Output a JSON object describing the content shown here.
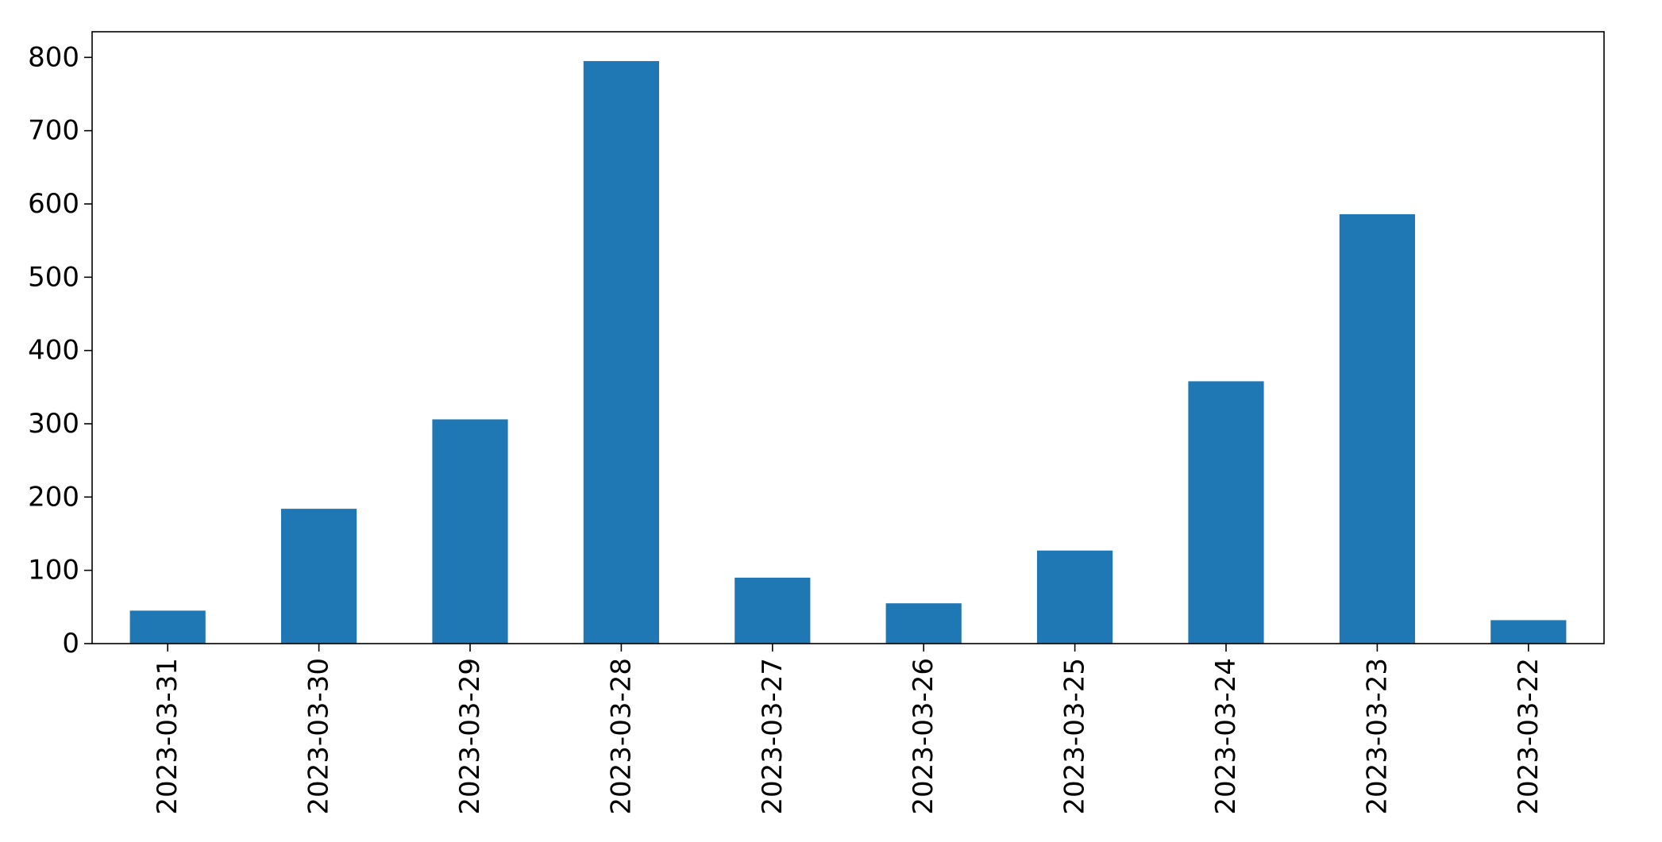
{
  "chart_data": {
    "type": "bar",
    "title": "",
    "xlabel": "",
    "ylabel": "",
    "categories": [
      "2023-03-31",
      "2023-03-30",
      "2023-03-29",
      "2023-03-28",
      "2023-03-27",
      "2023-03-26",
      "2023-03-25",
      "2023-03-24",
      "2023-03-23",
      "2023-03-22"
    ],
    "values": [
      45,
      184,
      306,
      795,
      90,
      55,
      127,
      358,
      586,
      32
    ],
    "ylim": [
      0,
      835
    ],
    "yticks": [
      0,
      100,
      200,
      300,
      400,
      500,
      600,
      700,
      800
    ],
    "ytick_labels": [
      "0",
      "100",
      "200",
      "300",
      "400",
      "500",
      "600",
      "700",
      "800"
    ],
    "grid": false,
    "bar_color": "#1f77b4"
  }
}
